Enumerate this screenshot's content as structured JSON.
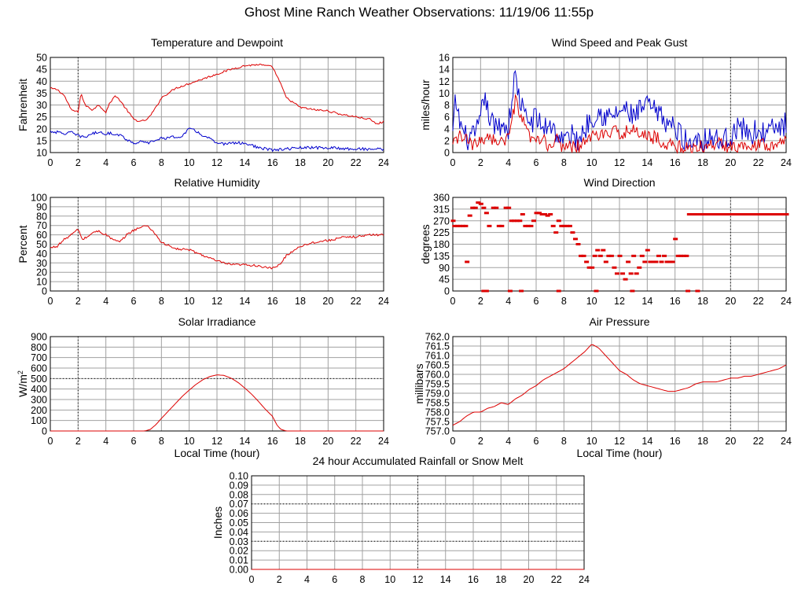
{
  "page": {
    "title": "Ghost Mine Ranch Weather Observations: 11/19/06 11:55p"
  },
  "colors": {
    "primary": "#dd0000",
    "secondary": "#0000cc",
    "grid": "#a0a0a0",
    "marker": "#000000"
  },
  "chart_data": [
    {
      "id": "temperature",
      "type": "line",
      "title": "Temperature and Dewpoint",
      "xlabel": "",
      "ylabel": "Fahrenheit",
      "xlim": [
        0,
        24
      ],
      "ylim": [
        10,
        50
      ],
      "yticks": [
        "10",
        "15",
        "20",
        "25",
        "30",
        "35",
        "40",
        "45",
        "50"
      ],
      "xticks": [
        "0",
        "2",
        "4",
        "6",
        "8",
        "10",
        "12",
        "14",
        "16",
        "18",
        "20",
        "22",
        "24"
      ],
      "markers": [
        2
      ],
      "series": [
        {
          "color": "#dd0000",
          "noise": 0.4,
          "x": [
            0,
            0.5,
            1,
            1.5,
            2,
            2.2,
            2.5,
            3,
            3.5,
            4,
            4.3,
            4.7,
            5,
            5.5,
            6,
            6.5,
            7,
            7.5,
            8,
            9,
            10,
            11,
            12,
            13,
            14,
            15,
            16,
            16.5,
            17,
            18,
            19,
            20,
            21,
            22,
            23,
            23.5,
            24
          ],
          "y": [
            37,
            36.5,
            34,
            28,
            27,
            35,
            30,
            28,
            30,
            27,
            31,
            34,
            32,
            28,
            24,
            23,
            24,
            28,
            33,
            37,
            39,
            41,
            43,
            45,
            46.5,
            47,
            46,
            40,
            33,
            29,
            28,
            27.5,
            26,
            25,
            24,
            22,
            23
          ]
        },
        {
          "color": "#0000cc",
          "noise": 0.6,
          "x": [
            0,
            0.5,
            1,
            1.5,
            2,
            2.5,
            3,
            3.5,
            4,
            4.5,
            5,
            5.5,
            6,
            6.5,
            7,
            8,
            9,
            9.5,
            10,
            10.5,
            11,
            11.5,
            12,
            13,
            14,
            15,
            16,
            17,
            18,
            20,
            22,
            24
          ],
          "y": [
            19,
            18.5,
            18,
            18.5,
            17,
            16.5,
            18,
            18.5,
            18,
            18,
            17.5,
            15.5,
            14,
            14.5,
            14,
            16,
            16.5,
            17,
            20,
            19,
            17,
            16,
            13.5,
            14,
            14,
            12,
            11,
            11.5,
            12,
            12,
            11.5,
            11.5
          ]
        }
      ]
    },
    {
      "id": "wind-speed",
      "type": "line",
      "title": "Wind Speed and Peak Gust",
      "xlabel": "",
      "ylabel": "miles/hour",
      "xlim": [
        0,
        24
      ],
      "ylim": [
        0,
        16
      ],
      "yticks": [
        "0",
        "2",
        "4",
        "6",
        "8",
        "10",
        "12",
        "14",
        "16"
      ],
      "xticks": [
        "0",
        "2",
        "4",
        "6",
        "8",
        "10",
        "12",
        "14",
        "16",
        "18",
        "20",
        "22",
        "24"
      ],
      "markers": [
        20
      ],
      "series": [
        {
          "color": "#0000cc",
          "noise": 2.0,
          "x": [
            0,
            0.2,
            0.4,
            0.8,
            1.2,
            1.6,
            2,
            2.2,
            2.5,
            3,
            3.5,
            4,
            4.3,
            4.5,
            4.8,
            5.2,
            5.6,
            6,
            6.5,
            7,
            7.5,
            8,
            8.5,
            9,
            9.5,
            10,
            10.5,
            11,
            11.5,
            12,
            12.5,
            13,
            13.5,
            14,
            14.5,
            15,
            15.5,
            16,
            16.5,
            17,
            17.5,
            18,
            18.5,
            19,
            19.5,
            20,
            20.5,
            21,
            21.5,
            22,
            22.5,
            23,
            23.5,
            24
          ],
          "y": [
            3,
            9,
            6,
            3,
            2,
            3,
            5,
            10,
            7,
            4,
            5,
            4,
            10,
            13,
            9,
            6,
            5,
            6,
            4,
            5,
            3,
            2,
            3,
            2,
            4,
            6,
            7,
            6,
            6,
            7,
            7,
            6,
            7,
            8,
            7,
            6,
            5,
            4,
            3,
            1,
            3,
            2,
            3,
            2,
            2,
            3,
            4,
            4,
            3,
            4,
            3,
            4,
            4,
            5
          ]
        },
        {
          "color": "#dd0000",
          "noise": 1.2,
          "x": [
            0,
            0.5,
            1,
            1.5,
            2,
            2.5,
            3,
            3.5,
            4,
            4.3,
            4.5,
            4.8,
            5.2,
            5.6,
            6,
            6.5,
            7,
            7.5,
            8,
            8.5,
            9,
            9.5,
            10,
            11,
            12,
            13,
            14,
            15,
            16,
            17,
            18,
            19,
            20,
            21,
            22,
            23,
            24
          ],
          "y": [
            1,
            3,
            2,
            1,
            2,
            3,
            2,
            2,
            2,
            6,
            8.5,
            7,
            4,
            2,
            2,
            2,
            1,
            2,
            1,
            1,
            1,
            1.5,
            3,
            3,
            3.5,
            3.5,
            3,
            2,
            1,
            0.5,
            1,
            1.5,
            1,
            1.5,
            1.5,
            1.5,
            2
          ]
        }
      ]
    },
    {
      "id": "humidity",
      "type": "line",
      "title": "Relative Humidity",
      "xlabel": "",
      "ylabel": "Percent",
      "xlim": [
        0,
        24
      ],
      "ylim": [
        0,
        100
      ],
      "yticks": [
        "0",
        "10",
        "20",
        "30",
        "40",
        "50",
        "60",
        "70",
        "80",
        "90",
        "100"
      ],
      "xticks": [
        "0",
        "2",
        "4",
        "6",
        "8",
        "10",
        "12",
        "14",
        "16",
        "18",
        "20",
        "22",
        "24"
      ],
      "markers": [
        2
      ],
      "series": [
        {
          "color": "#dd0000",
          "noise": 1.2,
          "x": [
            0,
            0.5,
            1,
            1.5,
            2,
            2.3,
            2.7,
            3,
            3.5,
            4,
            4.5,
            5,
            5.5,
            6,
            6.5,
            7,
            7.5,
            8,
            9,
            10,
            11,
            12,
            13,
            14,
            15,
            15.5,
            16,
            16.5,
            17,
            18,
            19,
            20,
            21,
            22,
            23,
            24
          ],
          "y": [
            46,
            48,
            55,
            60,
            66,
            55,
            58,
            62,
            64,
            60,
            55,
            52,
            60,
            65,
            68,
            70,
            62,
            52,
            45,
            44,
            38,
            32,
            28,
            28,
            27,
            25,
            24,
            28,
            38,
            48,
            52,
            54,
            57,
            58,
            60,
            60
          ]
        }
      ]
    },
    {
      "id": "wind-direction",
      "type": "scatter",
      "title": "Wind Direction",
      "xlabel": "",
      "ylabel": "degrees",
      "xlim": [
        0,
        24
      ],
      "ylim": [
        0,
        360
      ],
      "yticks": [
        "0",
        "45",
        "90",
        "135",
        "180",
        "225",
        "270",
        "315",
        "360"
      ],
      "xticks": [
        "0",
        "2",
        "4",
        "6",
        "8",
        "10",
        "12",
        "14",
        "16",
        "18",
        "20",
        "22",
        "24"
      ],
      "markers": [
        20
      ],
      "series": [
        {
          "color": "#dd0000",
          "x": [
            0,
            0.1,
            0.3,
            0.5,
            0.7,
            0.9,
            1.2,
            1.4,
            1.6,
            1.8,
            2.0,
            2.2,
            2.4,
            2.6,
            2.9,
            3.1,
            3.3,
            3.5,
            3.8,
            4.0,
            4.2,
            4.4,
            4.6,
            4.8,
            5.0,
            5.2,
            5.4,
            5.6,
            5.8,
            6.0,
            6.2,
            6.4,
            6.6,
            6.8,
            7.0,
            7.2,
            7.4,
            7.6,
            7.8,
            8.0,
            8.2,
            8.4,
            8.6,
            8.8,
            9.0,
            9.2,
            9.4,
            9.6,
            9.8,
            10.0,
            10.2,
            10.4,
            10.6,
            10.8,
            11.0,
            11.2,
            11.4,
            11.6,
            11.8,
            12.0,
            12.2,
            12.4,
            12.6,
            12.8,
            13.0,
            13.2,
            13.4,
            13.6,
            13.8,
            14.0,
            14.2,
            14.4,
            14.6,
            14.8,
            15.0,
            15.2,
            15.4,
            15.6,
            15.8,
            16.0,
            16.2,
            16.4,
            16.6,
            16.8,
            17.0,
            17.2,
            17.4,
            17.6,
            17.8,
            18,
            18.5,
            19,
            19.5,
            20,
            20.5,
            21,
            21.5,
            22,
            22.5,
            23,
            23.5,
            24,
            1.0,
            2.2,
            2.4,
            4.1,
            4.9,
            7.6,
            10.3,
            12.9,
            16.9,
            17.6
          ],
          "y": [
            270,
            250,
            250,
            250,
            250,
            250,
            290,
            320,
            320,
            340,
            335,
            320,
            300,
            250,
            320,
            320,
            250,
            250,
            320,
            320,
            270,
            270,
            270,
            270,
            295,
            250,
            250,
            250,
            270,
            300,
            300,
            295,
            295,
            290,
            295,
            250,
            225,
            270,
            250,
            250,
            250,
            250,
            225,
            200,
            180,
            135,
            135,
            112,
            90,
            90,
            135,
            157,
            135,
            157,
            112,
            135,
            135,
            90,
            67,
            135,
            67,
            45,
            112,
            67,
            135,
            67,
            90,
            135,
            112,
            157,
            112,
            112,
            112,
            135,
            112,
            135,
            112,
            112,
            112,
            200,
            135,
            135,
            135,
            135,
            295,
            295,
            295,
            295,
            295,
            295,
            295,
            295,
            295,
            295,
            295,
            295,
            295,
            295,
            295,
            295,
            295,
            295,
            112,
            0,
            0,
            0,
            0,
            0,
            0,
            0,
            0,
            0
          ]
        }
      ]
    },
    {
      "id": "solar",
      "type": "line",
      "title": "Solar Irradiance",
      "xlabel": "Local Time (hour)",
      "ylabel": "W/m",
      "ylabel_sup": "2",
      "xlim": [
        0,
        24
      ],
      "ylim": [
        0,
        900
      ],
      "yticks": [
        "0",
        "100",
        "200",
        "300",
        "400",
        "500",
        "600",
        "700",
        "800",
        "900"
      ],
      "xticks": [
        "0",
        "2",
        "4",
        "6",
        "8",
        "10",
        "12",
        "14",
        "16",
        "18",
        "20",
        "22",
        "24"
      ],
      "markers": [
        2
      ],
      "hline": 500,
      "series": [
        {
          "color": "#dd0000",
          "noise": 0,
          "x": [
            0,
            6.8,
            7.2,
            7.6,
            8,
            8.5,
            9,
            9.5,
            10,
            10.5,
            11,
            11.5,
            12,
            12.5,
            13,
            13.5,
            14,
            14.5,
            15,
            15.5,
            16,
            16.3,
            16.6,
            17,
            24
          ],
          "y": [
            0,
            0,
            15,
            60,
            120,
            190,
            260,
            330,
            390,
            445,
            490,
            520,
            535,
            530,
            505,
            465,
            410,
            350,
            280,
            205,
            140,
            60,
            15,
            0,
            0
          ]
        }
      ]
    },
    {
      "id": "pressure",
      "type": "line",
      "title": "Air Pressure",
      "xlabel": "Local Time (hour)",
      "ylabel": "millibars",
      "xlim": [
        0,
        24
      ],
      "ylim": [
        757.0,
        762.0
      ],
      "yticks": [
        "757.0",
        "757.5",
        "758.0",
        "758.5",
        "759.0",
        "759.5",
        "760.0",
        "760.5",
        "761.0",
        "761.5",
        "762.0"
      ],
      "xticks": [
        "0",
        "2",
        "4",
        "6",
        "8",
        "10",
        "12",
        "14",
        "16",
        "18",
        "20",
        "22",
        "24"
      ],
      "markers": [
        20
      ],
      "series": [
        {
          "color": "#dd0000",
          "noise": 0,
          "x": [
            0,
            0.5,
            1,
            1.5,
            2,
            2.5,
            3,
            3.5,
            4,
            4.5,
            5,
            5.5,
            6,
            6.5,
            7,
            7.5,
            8,
            8.5,
            9,
            9.5,
            10,
            10.5,
            11,
            11.5,
            12,
            12.5,
            13,
            13.5,
            14,
            14.5,
            15,
            15.5,
            16,
            16.5,
            17,
            17.5,
            18,
            18.5,
            19,
            19.5,
            20,
            20.5,
            21,
            21.5,
            22,
            22.5,
            23,
            23.5,
            24
          ],
          "y": [
            757.3,
            757.5,
            757.8,
            758.0,
            758.0,
            758.2,
            758.3,
            758.5,
            758.4,
            758.7,
            758.9,
            759.2,
            759.4,
            759.7,
            759.9,
            760.1,
            760.3,
            760.6,
            760.9,
            761.2,
            761.6,
            761.4,
            761.0,
            760.6,
            760.2,
            760.0,
            759.7,
            759.5,
            759.4,
            759.3,
            759.2,
            759.1,
            759.1,
            759.2,
            759.3,
            759.5,
            759.6,
            759.6,
            759.6,
            759.7,
            759.8,
            759.8,
            759.9,
            759.9,
            760.0,
            760.1,
            760.2,
            760.3,
            760.5
          ]
        }
      ]
    },
    {
      "id": "rainfall",
      "type": "line",
      "title": "24 hour Accumulated Rainfall or Snow Melt",
      "xlabel": "",
      "ylabel": "Inches",
      "xlim": [
        0,
        24
      ],
      "ylim": [
        0,
        0.1
      ],
      "yticks": [
        "0.00",
        "0.01",
        "0.02",
        "0.03",
        "0.04",
        "0.05",
        "0.06",
        "0.07",
        "0.08",
        "0.09",
        "0.10"
      ],
      "xticks": [
        "0",
        "2",
        "4",
        "6",
        "8",
        "10",
        "12",
        "14",
        "16",
        "18",
        "20",
        "22",
        "24"
      ],
      "markers": [
        12
      ],
      "hlines": [
        0.03,
        0.07
      ],
      "series": [
        {
          "color": "#dd0000",
          "noise": 0,
          "x": [
            0,
            24
          ],
          "y": [
            0,
            0
          ]
        }
      ]
    }
  ]
}
